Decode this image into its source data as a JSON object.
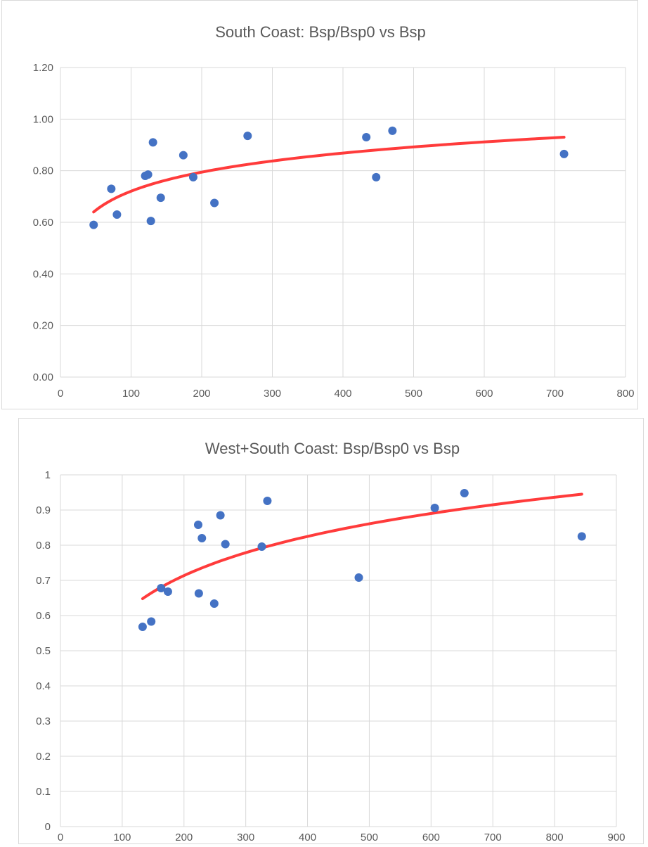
{
  "colors": {
    "point": "#4472c4",
    "trend": "#ff3b3b",
    "grid": "#d9d9d9",
    "axis_text": "#595959",
    "title_text": "#595959"
  },
  "chart_data": [
    {
      "type": "scatter",
      "title": "South Coast: Bsp/Bsp0 vs Bsp",
      "xlim": [
        0,
        800
      ],
      "ylim": [
        0,
        1.2
      ],
      "x_ticks": [
        "0",
        "100",
        "200",
        "300",
        "400",
        "500",
        "600",
        "700",
        "800"
      ],
      "y_ticks": [
        "0.00",
        "0.20",
        "0.40",
        "0.60",
        "0.80",
        "1.00",
        "1.20"
      ],
      "grid": true,
      "legend": "none",
      "points": [
        {
          "x": 47,
          "y": 0.59
        },
        {
          "x": 72,
          "y": 0.73
        },
        {
          "x": 80,
          "y": 0.63
        },
        {
          "x": 120,
          "y": 0.78
        },
        {
          "x": 124,
          "y": 0.785
        },
        {
          "x": 128,
          "y": 0.605
        },
        {
          "x": 131,
          "y": 0.91
        },
        {
          "x": 142,
          "y": 0.695
        },
        {
          "x": 174,
          "y": 0.86
        },
        {
          "x": 188,
          "y": 0.775
        },
        {
          "x": 218,
          "y": 0.675
        },
        {
          "x": 265,
          "y": 0.935
        },
        {
          "x": 433,
          "y": 0.93
        },
        {
          "x": 447,
          "y": 0.775
        },
        {
          "x": 470,
          "y": 0.955
        },
        {
          "x": 713,
          "y": 0.865
        }
      ],
      "trendline": {
        "type": "logarithmic",
        "x_range": [
          47,
          713
        ],
        "y_start": 0.64,
        "y_end": 0.93
      }
    },
    {
      "type": "scatter",
      "title": "West+South Coast: Bsp/Bsp0 vs Bsp",
      "xlim": [
        0,
        900
      ],
      "ylim": [
        0,
        1
      ],
      "x_ticks": [
        "0",
        "100",
        "200",
        "300",
        "400",
        "500",
        "600",
        "700",
        "800",
        "900"
      ],
      "y_ticks": [
        "0",
        "0.1",
        "0.2",
        "0.3",
        "0.4",
        "0.5",
        "0.6",
        "0.7",
        "0.8",
        "0.9",
        "1"
      ],
      "grid": true,
      "legend": "none",
      "points": [
        {
          "x": 133,
          "y": 0.568
        },
        {
          "x": 147,
          "y": 0.583
        },
        {
          "x": 163,
          "y": 0.678
        },
        {
          "x": 174,
          "y": 0.668
        },
        {
          "x": 223,
          "y": 0.858
        },
        {
          "x": 224,
          "y": 0.663
        },
        {
          "x": 229,
          "y": 0.82
        },
        {
          "x": 249,
          "y": 0.634
        },
        {
          "x": 259,
          "y": 0.885
        },
        {
          "x": 267,
          "y": 0.803
        },
        {
          "x": 326,
          "y": 0.796
        },
        {
          "x": 335,
          "y": 0.926
        },
        {
          "x": 483,
          "y": 0.708
        },
        {
          "x": 606,
          "y": 0.906
        },
        {
          "x": 654,
          "y": 0.948
        },
        {
          "x": 844,
          "y": 0.825
        }
      ],
      "trendline": {
        "type": "logarithmic",
        "x_range": [
          133,
          844
        ],
        "y_start": 0.648,
        "y_end": 0.945
      }
    }
  ]
}
